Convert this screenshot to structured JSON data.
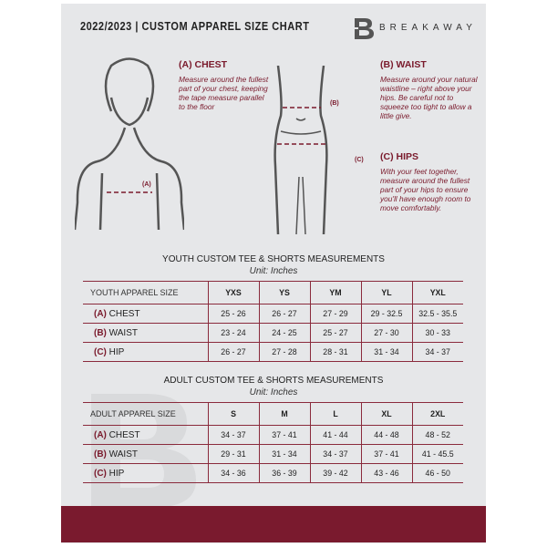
{
  "header": {
    "title": "2022/2023  |  CUSTOM APPAREL SIZE CHART",
    "brand": "BREAKAWAY",
    "logo_letter": "B"
  },
  "guide": {
    "chest": {
      "title": "(A) CHEST",
      "text": "Measure around the fullest part of your chest, keeping the tape measure parallel to the floor",
      "marker": "(A)"
    },
    "waist": {
      "title": "(B) WAIST",
      "text": "Measure around your natural waistline – right above your hips. Be careful not to squeeze too tight to allow a little give.",
      "marker": "(B)"
    },
    "hips": {
      "title": "(C) HIPS",
      "text": "With your feet together, measure around the fullest part of your hips to ensure you'll have enough room to move comfortably.",
      "marker": "(C)"
    }
  },
  "youth": {
    "title": "YOUTH CUSTOM TEE & SHORTS MEASUREMENTS",
    "unit": "Unit: Inches",
    "label": "YOUTH APPAREL SIZE",
    "sizes": [
      "YXS",
      "YS",
      "YM",
      "YL",
      "YXL"
    ],
    "rows": [
      {
        "code": "(A)",
        "name": "CHEST",
        "values": [
          "25 - 26",
          "26 - 27",
          "27 - 29",
          "29 - 32.5",
          "32.5 - 35.5"
        ]
      },
      {
        "code": "(B)",
        "name": "WAIST",
        "values": [
          "23 - 24",
          "24 - 25",
          "25 - 27",
          "27 - 30",
          "30 - 33"
        ]
      },
      {
        "code": "(C)",
        "name": "HIP",
        "values": [
          "26 - 27",
          "27 - 28",
          "28 - 31",
          "31 - 34",
          "34 - 37"
        ]
      }
    ]
  },
  "adult": {
    "title": "ADULT CUSTOM TEE & SHORTS MEASUREMENTS",
    "unit": "Unit: Inches",
    "label": "ADULT APPAREL SIZE",
    "sizes": [
      "S",
      "M",
      "L",
      "XL",
      "2XL"
    ],
    "rows": [
      {
        "code": "(A)",
        "name": "CHEST",
        "values": [
          "34 - 37",
          "37 - 41",
          "41 - 44",
          "44 - 48",
          "48 - 52"
        ]
      },
      {
        "code": "(B)",
        "name": "WAIST",
        "values": [
          "29 - 31",
          "31 - 34",
          "34 - 37",
          "37 - 41",
          "41 - 45.5"
        ]
      },
      {
        "code": "(C)",
        "name": "HIP",
        "values": [
          "34 - 36",
          "36 - 39",
          "39 - 42",
          "43 - 46",
          "46 - 50"
        ]
      }
    ]
  },
  "colors": {
    "accent": "#7a1a2e",
    "background": "#e6e7e9"
  }
}
